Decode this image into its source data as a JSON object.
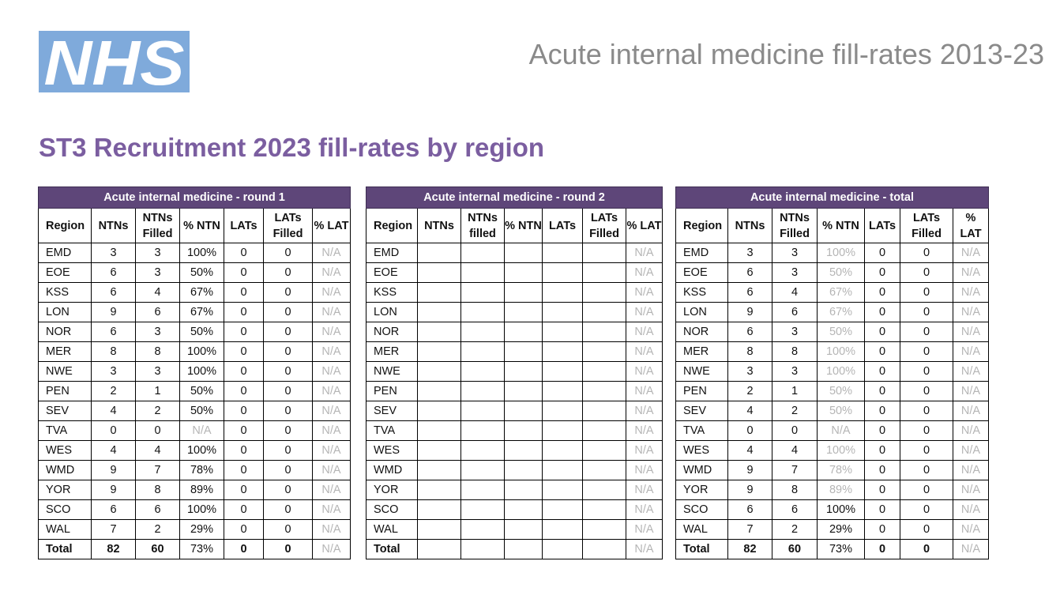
{
  "logo": {
    "text": "NHS"
  },
  "slide_title": "Acute internal medicine fill-rates 2013-23",
  "heading": "ST3 Recruitment 2023 fill-rates by region",
  "tables": [
    {
      "title": "Acute internal medicine - round 1",
      "columns": [
        "Region",
        "NTNs",
        "NTNs Filled",
        "% NTN",
        "LATs",
        "LATs Filled",
        "% LAT"
      ],
      "rows": [
        [
          "EMD",
          "3",
          "3",
          "100%",
          "0",
          "0",
          "N/A"
        ],
        [
          "EOE",
          "6",
          "3",
          "50%",
          "0",
          "0",
          "N/A"
        ],
        [
          "KSS",
          "6",
          "4",
          "67%",
          "0",
          "0",
          "N/A"
        ],
        [
          "LON",
          "9",
          "6",
          "67%",
          "0",
          "0",
          "N/A"
        ],
        [
          "NOR",
          "6",
          "3",
          "50%",
          "0",
          "0",
          "N/A"
        ],
        [
          "MER",
          "8",
          "8",
          "100%",
          "0",
          "0",
          "N/A"
        ],
        [
          "NWE",
          "3",
          "3",
          "100%",
          "0",
          "0",
          "N/A"
        ],
        [
          "PEN",
          "2",
          "1",
          "50%",
          "0",
          "0",
          "N/A"
        ],
        [
          "SEV",
          "4",
          "2",
          "50%",
          "0",
          "0",
          "N/A"
        ],
        [
          "TVA",
          "0",
          "0",
          "N/A",
          "0",
          "0",
          "N/A"
        ],
        [
          "WES",
          "4",
          "4",
          "100%",
          "0",
          "0",
          "N/A"
        ],
        [
          "WMD",
          "9",
          "7",
          "78%",
          "0",
          "0",
          "N/A"
        ],
        [
          "YOR",
          "9",
          "8",
          "89%",
          "0",
          "0",
          "N/A"
        ],
        [
          "SCO",
          "6",
          "6",
          "100%",
          "0",
          "0",
          "N/A"
        ],
        [
          "WAL",
          "7",
          "2",
          "29%",
          "0",
          "0",
          "N/A"
        ]
      ],
      "total": [
        "Total",
        "82",
        "60",
        "73%",
        "0",
        "0",
        "N/A"
      ]
    },
    {
      "title": "Acute internal medicine - round 2",
      "columns": [
        "Region",
        "NTNs",
        "NTNs filled",
        "% NTN",
        "LATs",
        "LATs Filled",
        "% LAT"
      ],
      "rows": [
        [
          "EMD",
          "",
          "",
          "",
          "",
          "",
          "N/A"
        ],
        [
          "EOE",
          "",
          "",
          "",
          "",
          "",
          "N/A"
        ],
        [
          "KSS",
          "",
          "",
          "",
          "",
          "",
          "N/A"
        ],
        [
          "LON",
          "",
          "",
          "",
          "",
          "",
          "N/A"
        ],
        [
          "NOR",
          "",
          "",
          "",
          "",
          "",
          "N/A"
        ],
        [
          "MER",
          "",
          "",
          "",
          "",
          "",
          "N/A"
        ],
        [
          "NWE",
          "",
          "",
          "",
          "",
          "",
          "N/A"
        ],
        [
          "PEN",
          "",
          "",
          "",
          "",
          "",
          "N/A"
        ],
        [
          "SEV",
          "",
          "",
          "",
          "",
          "",
          "N/A"
        ],
        [
          "TVA",
          "",
          "",
          "",
          "",
          "",
          "N/A"
        ],
        [
          "WES",
          "",
          "",
          "",
          "",
          "",
          "N/A"
        ],
        [
          "WMD",
          "",
          "",
          "",
          "",
          "",
          "N/A"
        ],
        [
          "YOR",
          "",
          "",
          "",
          "",
          "",
          "N/A"
        ],
        [
          "SCO",
          "",
          "",
          "",
          "",
          "",
          "N/A"
        ],
        [
          "WAL",
          "",
          "",
          "",
          "",
          "",
          "N/A"
        ]
      ],
      "total": [
        "Total",
        "",
        "",
        "",
        "",
        "",
        "N/A"
      ]
    },
    {
      "title": "Acute internal medicine - total",
      "columns": [
        "Region",
        "NTNs",
        "NTNs Filled",
        "% NTN",
        "LATs",
        "LATs Filled",
        "% LAT"
      ],
      "rows": [
        [
          "EMD",
          "3",
          "3",
          "100%",
          "0",
          "0",
          "N/A"
        ],
        [
          "EOE",
          "6",
          "3",
          "50%",
          "0",
          "0",
          "N/A"
        ],
        [
          "KSS",
          "6",
          "4",
          "67%",
          "0",
          "0",
          "N/A"
        ],
        [
          "LON",
          "9",
          "6",
          "67%",
          "0",
          "0",
          "N/A"
        ],
        [
          "NOR",
          "6",
          "3",
          "50%",
          "0",
          "0",
          "N/A"
        ],
        [
          "MER",
          "8",
          "8",
          "100%",
          "0",
          "0",
          "N/A"
        ],
        [
          "NWE",
          "3",
          "3",
          "100%",
          "0",
          "0",
          "N/A"
        ],
        [
          "PEN",
          "2",
          "1",
          "50%",
          "0",
          "0",
          "N/A"
        ],
        [
          "SEV",
          "4",
          "2",
          "50%",
          "0",
          "0",
          "N/A"
        ],
        [
          "TVA",
          "0",
          "0",
          "N/A",
          "0",
          "0",
          "N/A"
        ],
        [
          "WES",
          "4",
          "4",
          "100%",
          "0",
          "0",
          "N/A"
        ],
        [
          "WMD",
          "9",
          "7",
          "78%",
          "0",
          "0",
          "N/A"
        ],
        [
          "YOR",
          "9",
          "8",
          "89%",
          "0",
          "0",
          "N/A"
        ],
        [
          "SCO",
          "6",
          "6",
          "100%",
          "0",
          "0",
          "N/A"
        ],
        [
          "WAL",
          "7",
          "2",
          "29%",
          "0",
          "0",
          "N/A"
        ]
      ],
      "total": [
        "Total",
        "82",
        "60",
        "73%",
        "0",
        "0",
        "N/A"
      ]
    }
  ]
}
